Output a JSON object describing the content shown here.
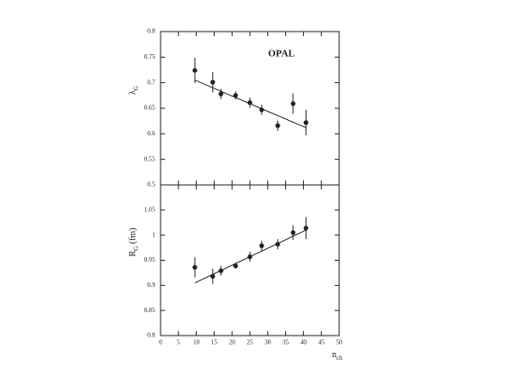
{
  "chart_data": [
    {
      "type": "scatter",
      "annotation": "OPAL",
      "ylabel": [
        "λ",
        "G"
      ],
      "ylim": [
        0.5,
        0.8
      ],
      "yticks": [
        0.5,
        0.55,
        0.6,
        0.65,
        0.7,
        0.75,
        0.8
      ],
      "xlim": [
        0,
        50
      ],
      "series": [
        {
          "type": "errorbar",
          "color": "#222",
          "x": [
            9.6,
            14.6,
            16.9,
            21.0,
            25.0,
            28.3,
            32.8,
            37.1,
            40.7
          ],
          "values": [
            0.724,
            0.701,
            0.678,
            0.675,
            0.661,
            0.647,
            0.616,
            0.659,
            0.622
          ],
          "errors": [
            0.025,
            0.02,
            0.01,
            0.008,
            0.01,
            0.01,
            0.01,
            0.02,
            0.025
          ]
        },
        {
          "type": "line",
          "color": "#222",
          "x": [
            9.6,
            40.7
          ],
          "values": [
            0.705,
            0.612
          ]
        }
      ]
    },
    {
      "type": "scatter",
      "ylabel": [
        "R",
        "G",
        " (fm)"
      ],
      "xlabel": [
        "n",
        "ch"
      ],
      "ylim": [
        0.8,
        1.1
      ],
      "yticks": [
        0.8,
        0.85,
        0.9,
        0.95,
        1,
        1.05
      ],
      "xlim": [
        0,
        50
      ],
      "xticks": [
        0,
        5,
        10,
        15,
        20,
        25,
        30,
        35,
        40,
        45,
        50
      ],
      "series": [
        {
          "type": "errorbar",
          "color": "#222",
          "x": [
            9.6,
            14.6,
            16.9,
            21.0,
            25.0,
            28.3,
            32.8,
            37.1,
            40.7
          ],
          "values": [
            0.936,
            0.918,
            0.929,
            0.939,
            0.957,
            0.979,
            0.982,
            1.005,
            1.014
          ],
          "errors": [
            0.02,
            0.015,
            0.01,
            0.006,
            0.01,
            0.01,
            0.01,
            0.015,
            0.022
          ]
        },
        {
          "type": "line",
          "color": "#222",
          "x": [
            9.6,
            40.7
          ],
          "values": [
            0.905,
            1.01
          ]
        }
      ]
    }
  ]
}
